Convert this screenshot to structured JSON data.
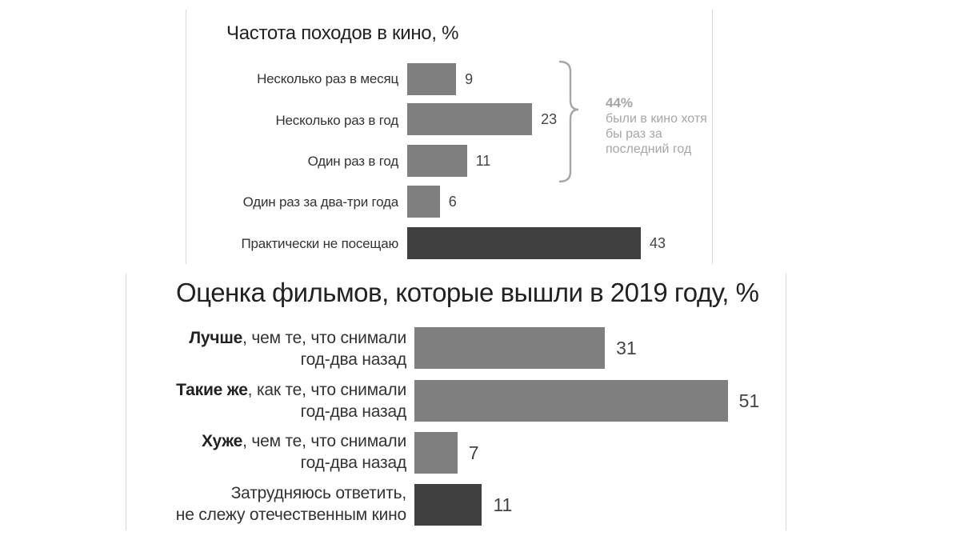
{
  "chart_data": [
    {
      "type": "bar",
      "title": "Частота походов в кино, %",
      "categories": [
        "Несколько раз в месяц",
        "Несколько раз в год",
        "Один раз в год",
        "Один раз за два-три года",
        "Практически не посещаю"
      ],
      "values": [
        9,
        23,
        11,
        6,
        43
      ],
      "colors": [
        "#7f7f7f",
        "#7f7f7f",
        "#7f7f7f",
        "#7f7f7f",
        "#404040"
      ],
      "annotation": {
        "value": "44%",
        "text": "были в кино хотя бы раз за последний год",
        "color": "#a6a6a6"
      }
    },
    {
      "type": "bar",
      "title": "Оценка фильмов, которые вышли в 2019 году, %",
      "categories": [
        {
          "bold": "Лучше",
          "rest": ", чем те, что снимали",
          "line2": "год-два назад"
        },
        {
          "bold": "Такие же",
          "rest": ", как те, что снимали",
          "line2": "год-два назад"
        },
        {
          "bold": "Хуже",
          "rest": ", чем те, что снимали",
          "line2": "год-два назад"
        },
        {
          "bold": "",
          "rest": "Затрудняюсь ответить,",
          "line2": "не слежу отечественным кино"
        }
      ],
      "values": [
        31,
        51,
        7,
        11
      ],
      "colors": [
        "#7f7f7f",
        "#7f7f7f",
        "#7f7f7f",
        "#404040"
      ]
    }
  ]
}
